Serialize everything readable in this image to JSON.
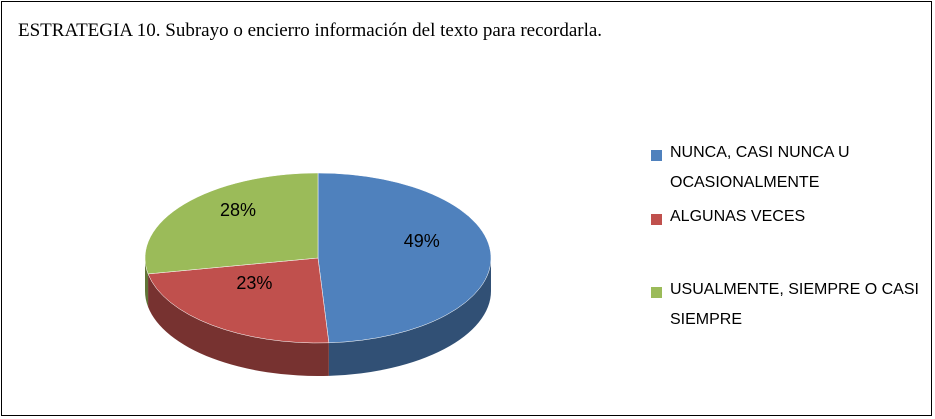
{
  "chart_data": {
    "type": "pie",
    "title": "ESTRATEGIA 10. Subrayo o encierro información del texto para recordarla.",
    "categories": [
      "NUNCA, CASI NUNCA U OCASIONALMENTE",
      "ALGUNAS VECES",
      "USUALMENTE, SIEMPRE O CASI SIEMPRE"
    ],
    "values": [
      49,
      23,
      28
    ],
    "value_labels": [
      "49%",
      "23%",
      "28%"
    ],
    "colors": [
      "#4f81bd",
      "#c0504d",
      "#9bbb59"
    ],
    "legend": "right"
  }
}
